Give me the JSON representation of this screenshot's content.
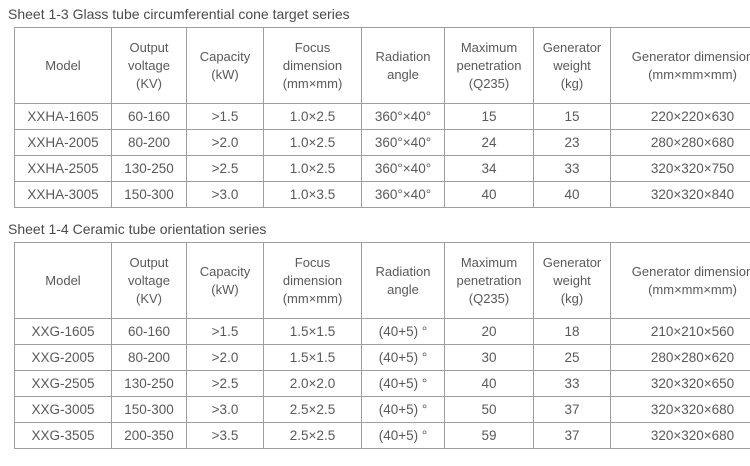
{
  "tables": [
    {
      "title": "Sheet 1-3 Glass tube circumferential cone target series",
      "headers": [
        {
          "id": "model",
          "lines": [
            "Model"
          ]
        },
        {
          "id": "output-voltage",
          "lines": [
            "Output",
            "voltage",
            "(KV)"
          ]
        },
        {
          "id": "capacity",
          "lines": [
            "Capacity",
            "(kW)"
          ]
        },
        {
          "id": "focus-dimension",
          "lines": [
            "Focus",
            "dimension",
            "(mm×mm)"
          ]
        },
        {
          "id": "radiation-angle",
          "lines": [
            "Radiation",
            "angle"
          ]
        },
        {
          "id": "maximum-penetration",
          "lines": [
            "Maximum",
            "penetration",
            "(Q235)"
          ]
        },
        {
          "id": "generator-weight",
          "lines": [
            "Generator",
            "weight",
            "(kg)"
          ]
        },
        {
          "id": "generator-dimension",
          "lines": [
            "Generator dimension",
            "(mm×mm×mm)"
          ]
        }
      ],
      "rows": [
        [
          "XXHA-1605",
          "60-160",
          ">1.5",
          "1.0×2.5",
          "360°×40°",
          "15",
          "15",
          "220×220×630"
        ],
        [
          "XXHA-2005",
          "80-200",
          ">2.0",
          "1.0×2.5",
          "360°×40°",
          "24",
          "23",
          "280×280×680"
        ],
        [
          "XXHA-2505",
          "130-250",
          ">2.5",
          "1.0×2.5",
          "360°×40°",
          "34",
          "33",
          "320×320×750"
        ],
        [
          "XXHA-3005",
          "150-300",
          ">3.0",
          "1.0×3.5",
          "360°×40°",
          "40",
          "40",
          "320×320×840"
        ]
      ]
    },
    {
      "title": "Sheet 1-4 Ceramic tube orientation series",
      "headers": [
        {
          "id": "model",
          "lines": [
            "Model"
          ]
        },
        {
          "id": "output-voltage",
          "lines": [
            "Output",
            "voltage",
            "(KV)"
          ]
        },
        {
          "id": "capacity",
          "lines": [
            "Capacity",
            "(kW)"
          ]
        },
        {
          "id": "focus-dimension",
          "lines": [
            "Focus",
            "dimension",
            "(mm×mm)"
          ]
        },
        {
          "id": "radiation-angle",
          "lines": [
            "Radiation",
            "angle"
          ]
        },
        {
          "id": "maximum-penetration",
          "lines": [
            "Maximum",
            "penetration",
            "(Q235)"
          ]
        },
        {
          "id": "generator-weight",
          "lines": [
            "Generator",
            "weight",
            "(kg)"
          ]
        },
        {
          "id": "generator-dimension",
          "lines": [
            "Generator dimension",
            "(mm×mm×mm)"
          ]
        }
      ],
      "rows": [
        [
          "XXG-1605",
          "60-160",
          ">1.5",
          "1.5×1.5",
          "(40+5) °",
          "20",
          "18",
          "210×210×560"
        ],
        [
          "XXG-2005",
          "80-200",
          ">2.0",
          "1.5×1.5",
          "(40+5) °",
          "30",
          "25",
          "280×280×620"
        ],
        [
          "XXG-2505",
          "130-250",
          ">2.5",
          "2.0×2.0",
          "(40+5) °",
          "40",
          "33",
          "320×320×650"
        ],
        [
          "XXG-3005",
          "150-300",
          ">3.0",
          "2.5×2.5",
          "(40+5) °",
          "50",
          "37",
          "320×320×680"
        ],
        [
          "XXG-3505",
          "200-350",
          ">3.5",
          "2.5×2.5",
          "(40+5) °",
          "59",
          "37",
          "320×320×680"
        ]
      ]
    }
  ]
}
